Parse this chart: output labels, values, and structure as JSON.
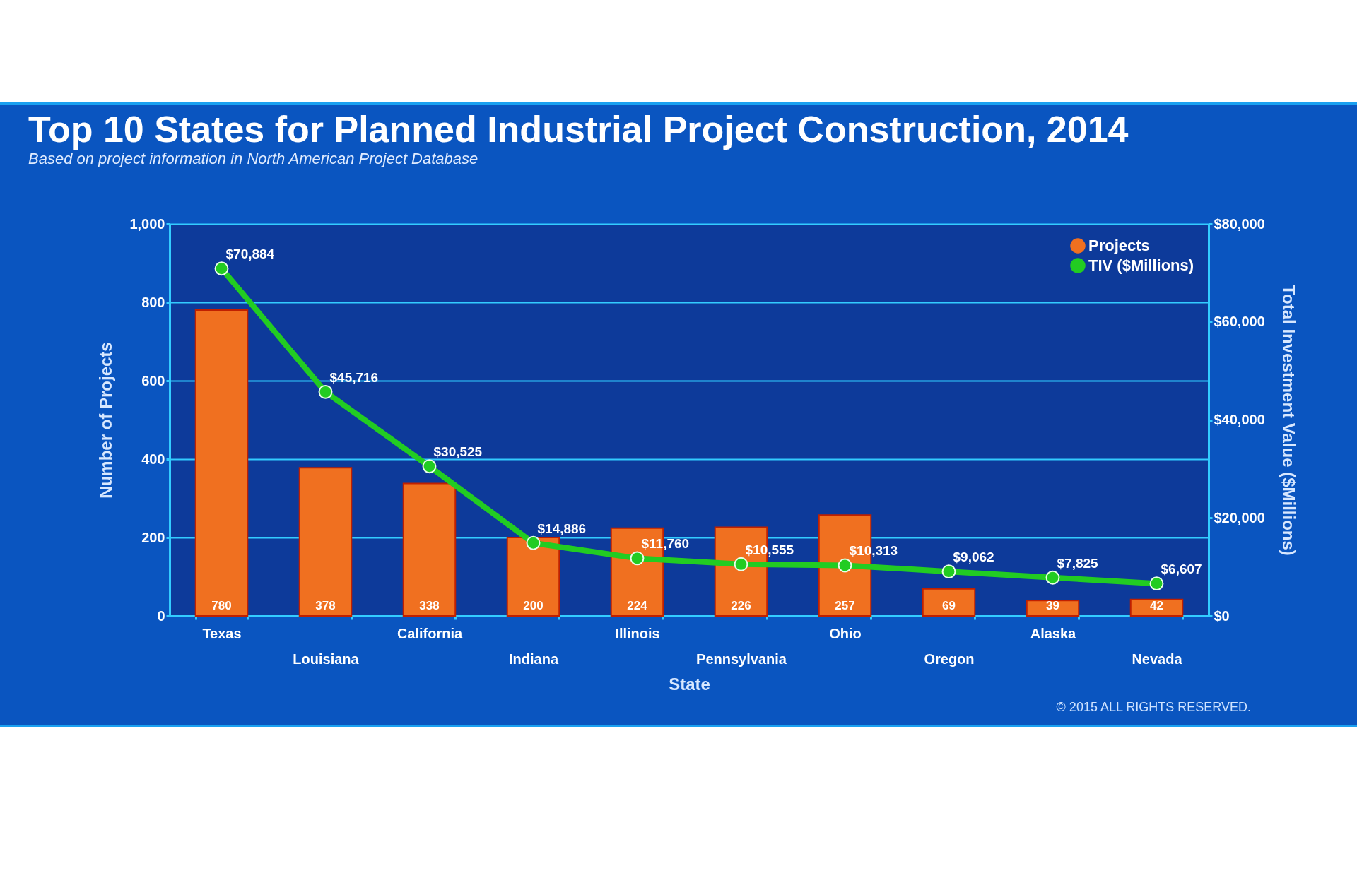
{
  "chart_data": {
    "type": "bar",
    "title": "Top 10 States for Planned Industrial Project Construction, 2014",
    "subtitle": "Based on project information in North American Project Database",
    "xlabel": "State",
    "ylabel": "Number of Projects",
    "y2label": "Total Investment Value ($Millions)",
    "categories": [
      "Texas",
      "Louisiana",
      "California",
      "Indiana",
      "Illinois",
      "Pennsylvania",
      "Ohio",
      "Oregon",
      "Alaska",
      "Nevada"
    ],
    "series": [
      {
        "name": "Projects",
        "color": "#f07020",
        "values": [
          780,
          378,
          338,
          200,
          224,
          226,
          257,
          69,
          39,
          42
        ]
      },
      {
        "name": "TIV ($Millions)",
        "type": "line",
        "axis": "y2",
        "color": "#22cc22",
        "marker": "circle",
        "values": [
          70884,
          45716,
          30525,
          14886,
          11760,
          10555,
          10313,
          9062,
          7825,
          6607
        ],
        "value_labels": [
          "$70,884",
          "$45,716",
          "$30,525",
          "$14,886",
          "$11,760",
          "$10,555",
          "$10,313",
          "$9,062",
          "$7,825",
          "$6,607"
        ]
      }
    ],
    "data_labels": true,
    "ylim": [
      0,
      1000
    ],
    "yticks": [
      0,
      200,
      400,
      600,
      800,
      {
        "value": 1000,
        "label": "1,000"
      }
    ],
    "y2lim": [
      0,
      80000
    ],
    "y2ticks": [
      {
        "value": 0,
        "label": "$0"
      },
      {
        "value": 20000,
        "label": "$20,000"
      },
      {
        "value": 40000,
        "label": "$40,000"
      },
      {
        "value": 60000,
        "label": "$60,000"
      },
      {
        "value": 80000,
        "label": "$80,000"
      }
    ],
    "grid": "y",
    "legend": "top right",
    "annotations": [
      "© 2015 ALL RIGHTS RESERVED."
    ]
  }
}
